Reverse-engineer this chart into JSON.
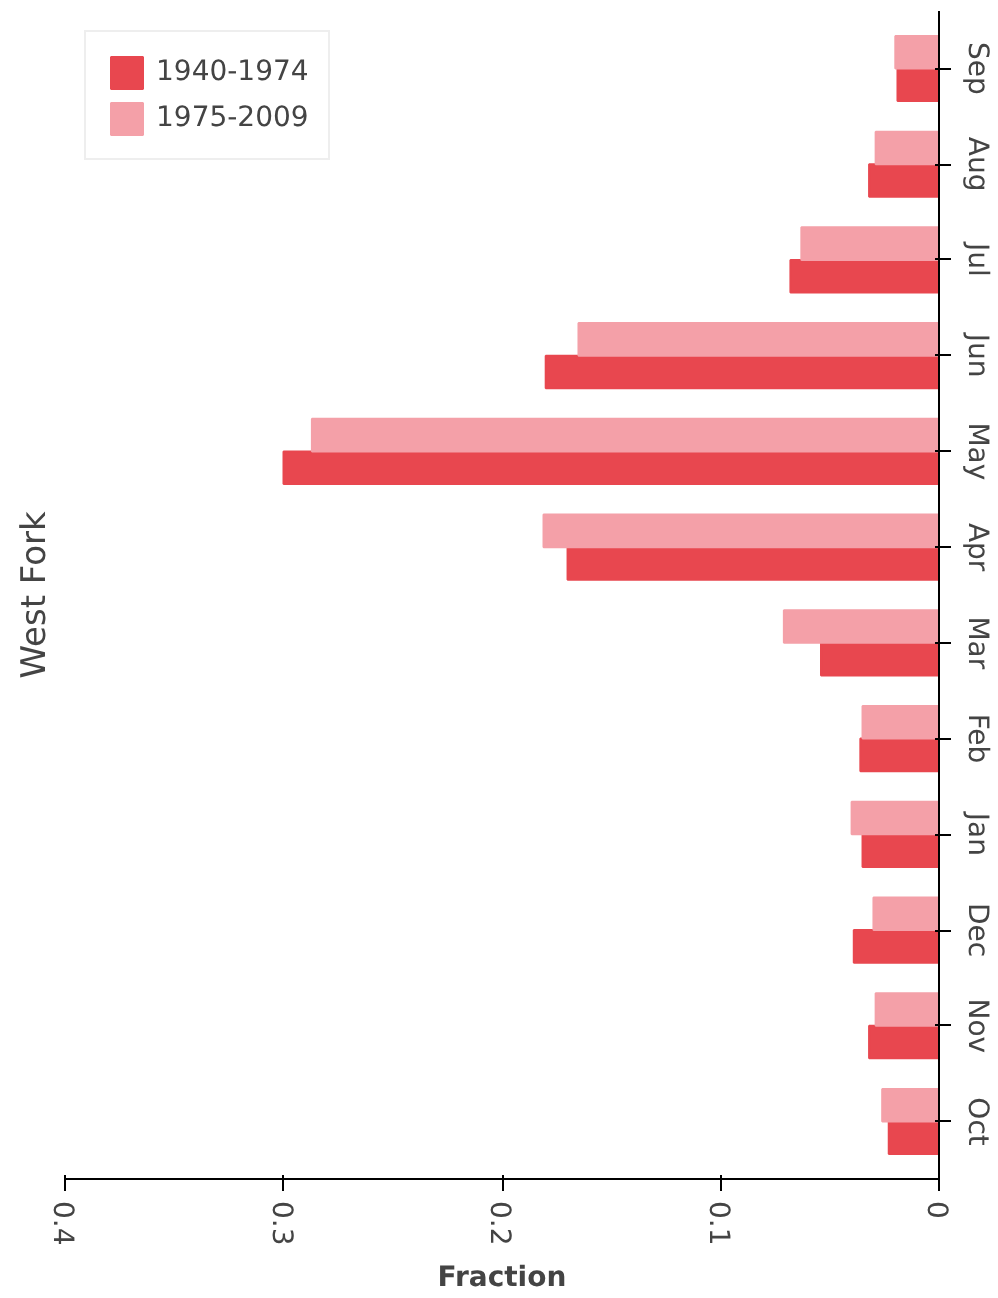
{
  "chart_data": {
    "type": "bar",
    "orientation": "horizontal",
    "title": "West Fork",
    "xlabel": "Fraction",
    "categories": [
      "Sep",
      "Aug",
      "Jul",
      "Jun",
      "May",
      "Apr",
      "Mar",
      "Feb",
      "Jan",
      "Dec",
      "Nov",
      "Oct"
    ],
    "series": [
      {
        "name": "1940-1974",
        "color": "#e8474f",
        "values": [
          0.019,
          0.032,
          0.068,
          0.18,
          0.3,
          0.17,
          0.054,
          0.036,
          0.035,
          0.039,
          0.032,
          0.023
        ]
      },
      {
        "name": "1975-2009",
        "color": "#f4a0a8",
        "values": [
          0.02,
          0.029,
          0.063,
          0.165,
          0.287,
          0.181,
          0.071,
          0.035,
          0.04,
          0.03,
          0.029,
          0.026
        ]
      }
    ],
    "xlim": [
      0.4,
      0
    ],
    "xticks": [
      0.4,
      0.3,
      0.2,
      0.1,
      0
    ],
    "grid": false,
    "legend": "top left"
  }
}
